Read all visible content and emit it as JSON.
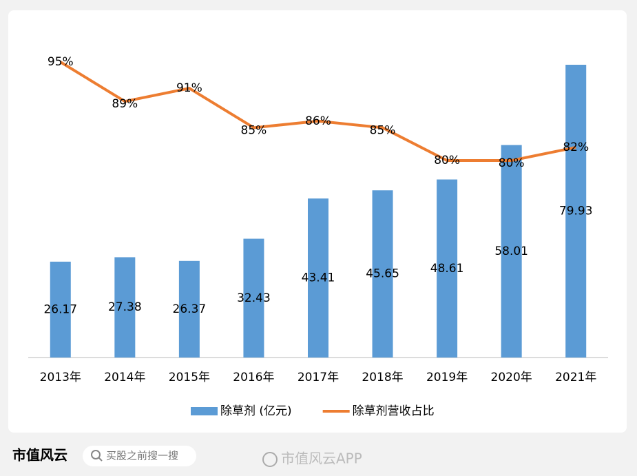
{
  "chart_data": {
    "type": "bar-line",
    "categories": [
      "2013年",
      "2014年",
      "2015年",
      "2016年",
      "2017年",
      "2018年",
      "2019年",
      "2020年",
      "2021年"
    ],
    "series": [
      {
        "name": "除草剂 (亿元)",
        "type": "bar",
        "color": "#5b9bd5",
        "values": [
          26.17,
          27.38,
          26.37,
          32.43,
          43.41,
          45.65,
          48.61,
          58.01,
          79.93
        ]
      },
      {
        "name": "除草剂营收占比",
        "type": "line",
        "axis": "y2",
        "color": "#ed7d31",
        "values": [
          95,
          89,
          91,
          85,
          86,
          85,
          80,
          80,
          82
        ],
        "value_labels": [
          "95%",
          "89%",
          "91%",
          "85%",
          "86%",
          "85%",
          "80%",
          "80%",
          "82%"
        ]
      }
    ],
    "legend": "bottom"
  },
  "footer": {
    "brand": "市值风云",
    "search": "买股之前搜一搜",
    "watermark": "市值风云APP"
  }
}
